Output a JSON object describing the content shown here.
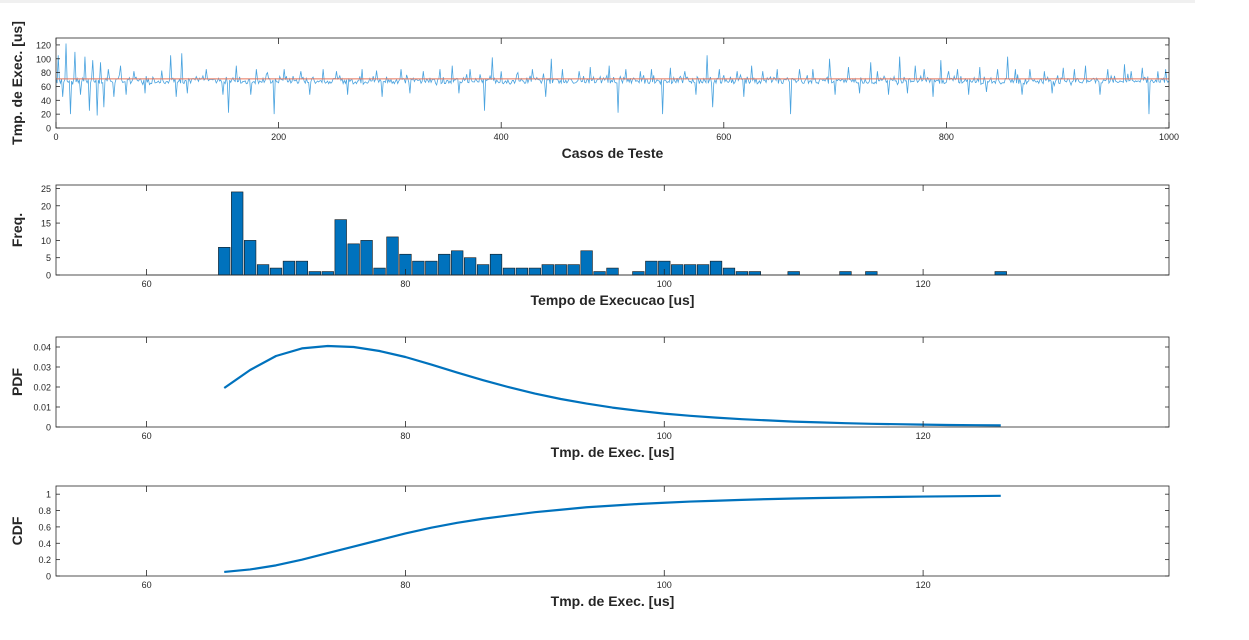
{
  "chart_data": [
    {
      "type": "line",
      "xlabel": "Casos de Teste",
      "ylabel": "Tmp. de Exec. [us]",
      "xlim": [
        0,
        1000
      ],
      "ylim": [
        0,
        130
      ],
      "xticks": [
        0,
        200,
        400,
        600,
        800,
        1000
      ],
      "yticks": [
        0,
        20,
        40,
        60,
        80,
        100,
        120
      ],
      "grid": false,
      "series": [
        {
          "color": "#4aa3df",
          "baseline": 68,
          "spikes": [
            [
              2,
              105
            ],
            [
              6,
              45
            ],
            [
              9,
              122
            ],
            [
              13,
              20
            ],
            [
              17,
              110
            ],
            [
              22,
              48
            ],
            [
              26,
              103
            ],
            [
              30,
              25
            ],
            [
              33,
              98
            ],
            [
              37,
              18
            ],
            [
              40,
              95
            ],
            [
              43,
              30
            ],
            [
              47,
              85
            ],
            [
              52,
              45
            ],
            [
              58,
              90
            ],
            [
              63,
              48
            ],
            [
              70,
              82
            ],
            [
              80,
              50
            ],
            [
              95,
              83
            ],
            [
              103,
              105
            ],
            [
              108,
              45
            ],
            [
              113,
              108
            ],
            [
              118,
              50
            ],
            [
              135,
              85
            ],
            [
              150,
              48
            ],
            [
              155,
              22
            ],
            [
              162,
              90
            ],
            [
              175,
              48
            ],
            [
              180,
              85
            ],
            [
              190,
              80
            ],
            [
              196,
              20
            ],
            [
              205,
              85
            ],
            [
              220,
              82
            ],
            [
              228,
              48
            ],
            [
              240,
              85
            ],
            [
              252,
              82
            ],
            [
              262,
              48
            ],
            [
              275,
              85
            ],
            [
              288,
              83
            ],
            [
              293,
              45
            ],
            [
              310,
              85
            ],
            [
              318,
              50
            ],
            [
              330,
              82
            ],
            [
              345,
              85
            ],
            [
              356,
              90
            ],
            [
              362,
              50
            ],
            [
              372,
              85
            ],
            [
              385,
              25
            ],
            [
              392,
              102
            ],
            [
              400,
              82
            ],
            [
              415,
              80
            ],
            [
              428,
              85
            ],
            [
              440,
              45
            ],
            [
              445,
              100
            ],
            [
              455,
              85
            ],
            [
              470,
              82
            ],
            [
              480,
              88
            ],
            [
              497,
              90
            ],
            [
              505,
              22
            ],
            [
              512,
              85
            ],
            [
              525,
              82
            ],
            [
              535,
              85
            ],
            [
              545,
              20
            ],
            [
              552,
              87
            ],
            [
              565,
              82
            ],
            [
              575,
              48
            ],
            [
              585,
              105
            ],
            [
              590,
              30
            ],
            [
              596,
              85
            ],
            [
              612,
              82
            ],
            [
              618,
              45
            ],
            [
              625,
              90
            ],
            [
              635,
              82
            ],
            [
              648,
              85
            ],
            [
              660,
              20
            ],
            [
              668,
              85
            ],
            [
              680,
              85
            ],
            [
              695,
              100
            ],
            [
              700,
              48
            ],
            [
              712,
              88
            ],
            [
              722,
              50
            ],
            [
              732,
              95
            ],
            [
              738,
              82
            ],
            [
              748,
              48
            ],
            [
              758,
              103
            ],
            [
              765,
              50
            ],
            [
              772,
              90
            ],
            [
              780,
              85
            ],
            [
              788,
              45
            ],
            [
              795,
              98
            ],
            [
              802,
              82
            ],
            [
              810,
              85
            ],
            [
              820,
              48
            ],
            [
              830,
              88
            ],
            [
              836,
              52
            ],
            [
              846,
              85
            ],
            [
              855,
              103
            ],
            [
              862,
              85
            ],
            [
              868,
              48
            ],
            [
              875,
              85
            ],
            [
              888,
              82
            ],
            [
              895,
              50
            ],
            [
              905,
              87
            ],
            [
              915,
              85
            ],
            [
              925,
              90
            ],
            [
              938,
              48
            ],
            [
              945,
              85
            ],
            [
              960,
              92
            ],
            [
              966,
              82
            ],
            [
              976,
              87
            ],
            [
              982,
              20
            ],
            [
              990,
              82
            ],
            [
              997,
              85
            ]
          ]
        },
        {
          "color": "#e8745a",
          "constant": 71
        }
      ]
    },
    {
      "type": "bar",
      "xlabel": "Tempo de Execucao [us]",
      "ylabel": "Freq.",
      "xlim": [
        53,
        139
      ],
      "ylim": [
        0,
        26
      ],
      "xticks": [
        60,
        80,
        100,
        120
      ],
      "yticks": [
        0,
        5,
        10,
        15,
        20,
        25
      ],
      "grid": false,
      "bar_width": 0.9,
      "color": "#0072bd",
      "x": [
        66,
        67,
        68,
        69,
        70,
        71,
        72,
        73,
        74,
        75,
        76,
        77,
        78,
        79,
        80,
        81,
        82,
        83,
        84,
        85,
        86,
        87,
        88,
        89,
        90,
        91,
        92,
        93,
        94,
        95,
        96,
        98,
        99,
        100,
        101,
        102,
        103,
        104,
        105,
        106,
        107,
        110,
        114,
        116,
        126
      ],
      "values": [
        8,
        24,
        10,
        3,
        2,
        4,
        4,
        1,
        1,
        16,
        9,
        10,
        2,
        11,
        6,
        4,
        4,
        6,
        7,
        5,
        3,
        6,
        2,
        2,
        2,
        3,
        3,
        3,
        7,
        1,
        2,
        1,
        4,
        4,
        3,
        3,
        3,
        4,
        2,
        1,
        1,
        1,
        1,
        1,
        1
      ]
    },
    {
      "type": "line",
      "xlabel": "Tmp. de Exec. [us]",
      "ylabel": "PDF",
      "xlim": [
        53,
        139
      ],
      "ylim": [
        0,
        0.045
      ],
      "xticks": [
        60,
        80,
        100,
        120
      ],
      "yticks": [
        0,
        0.01,
        0.02,
        0.03,
        0.04
      ],
      "ytick_labels": [
        "0",
        "0.01",
        "0.02",
        "0.03",
        "0.04"
      ],
      "grid": false,
      "series": [
        {
          "color": "#0072bd",
          "x": [
            66,
            68,
            70,
            72,
            74,
            76,
            78,
            80,
            82,
            84,
            86,
            88,
            90,
            92,
            94,
            96,
            98,
            100,
            102,
            104,
            106,
            108,
            110,
            112,
            114,
            116,
            118,
            120,
            122,
            124,
            126
          ],
          "y": [
            0.0195,
            0.0285,
            0.0355,
            0.0393,
            0.0405,
            0.04,
            0.038,
            0.035,
            0.0312,
            0.0272,
            0.0234,
            0.0199,
            0.0167,
            0.014,
            0.0117,
            0.0097,
            0.0081,
            0.0067,
            0.0056,
            0.0047,
            0.0039,
            0.0033,
            0.0027,
            0.0023,
            0.0019,
            0.0016,
            0.0014,
            0.0012,
            0.001,
            0.0009,
            0.0008
          ]
        }
      ]
    },
    {
      "type": "line",
      "xlabel": "Tmp. de Exec. [us]",
      "ylabel": "CDF",
      "xlim": [
        53,
        139
      ],
      "ylim": [
        0,
        1.1
      ],
      "xticks": [
        60,
        80,
        100,
        120
      ],
      "yticks": [
        0,
        0.2,
        0.4,
        0.6,
        0.8,
        1
      ],
      "ytick_labels": [
        "0",
        "0.2",
        "0.4",
        "0.6",
        "0.8",
        "1"
      ],
      "grid": false,
      "series": [
        {
          "color": "#0072bd",
          "x": [
            66,
            68,
            70,
            72,
            74,
            76,
            78,
            80,
            82,
            84,
            86,
            88,
            90,
            92,
            94,
            96,
            98,
            100,
            102,
            104,
            106,
            108,
            110,
            112,
            114,
            116,
            118,
            120,
            122,
            124,
            126
          ],
          "y": [
            0.05,
            0.08,
            0.13,
            0.2,
            0.28,
            0.36,
            0.44,
            0.52,
            0.59,
            0.65,
            0.7,
            0.74,
            0.78,
            0.81,
            0.84,
            0.86,
            0.88,
            0.895,
            0.91,
            0.92,
            0.93,
            0.94,
            0.947,
            0.953,
            0.958,
            0.963,
            0.967,
            0.971,
            0.974,
            0.977,
            0.98
          ]
        }
      ]
    }
  ]
}
